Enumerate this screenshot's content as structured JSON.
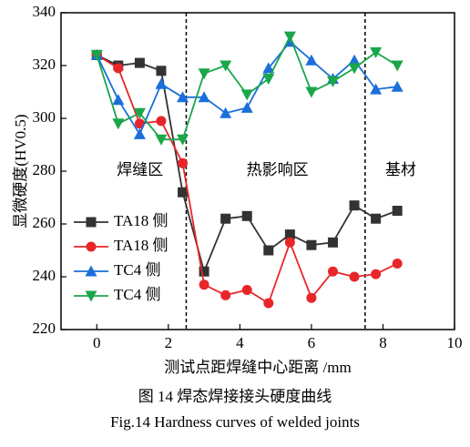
{
  "chart_data": {
    "type": "line",
    "x": [
      0,
      0.6,
      1.2,
      1.8,
      2.4,
      3.0,
      3.6,
      4.2,
      4.8,
      5.4,
      6.0,
      6.6,
      7.2,
      7.8,
      8.4
    ],
    "series": [
      {
        "name": "TA18 侧",
        "color": "#333333",
        "marker": "square",
        "values": [
          324,
          320,
          321,
          318,
          272,
          242,
          262,
          263,
          250,
          256,
          252,
          253,
          267,
          262,
          265
        ]
      },
      {
        "name": "TA18 侧",
        "color": "#e8262a",
        "marker": "circle",
        "values": [
          324,
          319,
          298,
          299,
          283,
          237,
          233,
          235,
          230,
          253,
          232,
          242,
          240,
          241,
          245
        ]
      },
      {
        "name": "TC4 侧",
        "color": "#1a6fdb",
        "marker": "triangle-up",
        "values": [
          324,
          307,
          294,
          313,
          308,
          308,
          302,
          304,
          319,
          329,
          322,
          315,
          322,
          311,
          312
        ]
      },
      {
        "name": "TC4 侧",
        "color": "#1aa64a",
        "marker": "triangle-down",
        "values": [
          324,
          298,
          302,
          292,
          292,
          317,
          320,
          309,
          315,
          331,
          310,
          314,
          319,
          325,
          320
        ]
      }
    ],
    "xlim": [
      -1,
      10
    ],
    "xticks": [
      0,
      2,
      4,
      6,
      8,
      10
    ],
    "ylim": [
      220,
      340
    ],
    "yticks": [
      220,
      240,
      260,
      280,
      300,
      320,
      340
    ],
    "xlabel": "测试点距焊缝中心距离 /mm",
    "ylabel": "显微硬度(HV0.5)",
    "vlines": [
      2.5,
      7.5
    ],
    "regions": [
      "焊缝区",
      "热影响区",
      "基材"
    ],
    "legend": "lower left",
    "caption": [
      "图 14  焊态焊接接头硬度曲线",
      "Fig.14  Hardness curves of welded joints"
    ]
  }
}
